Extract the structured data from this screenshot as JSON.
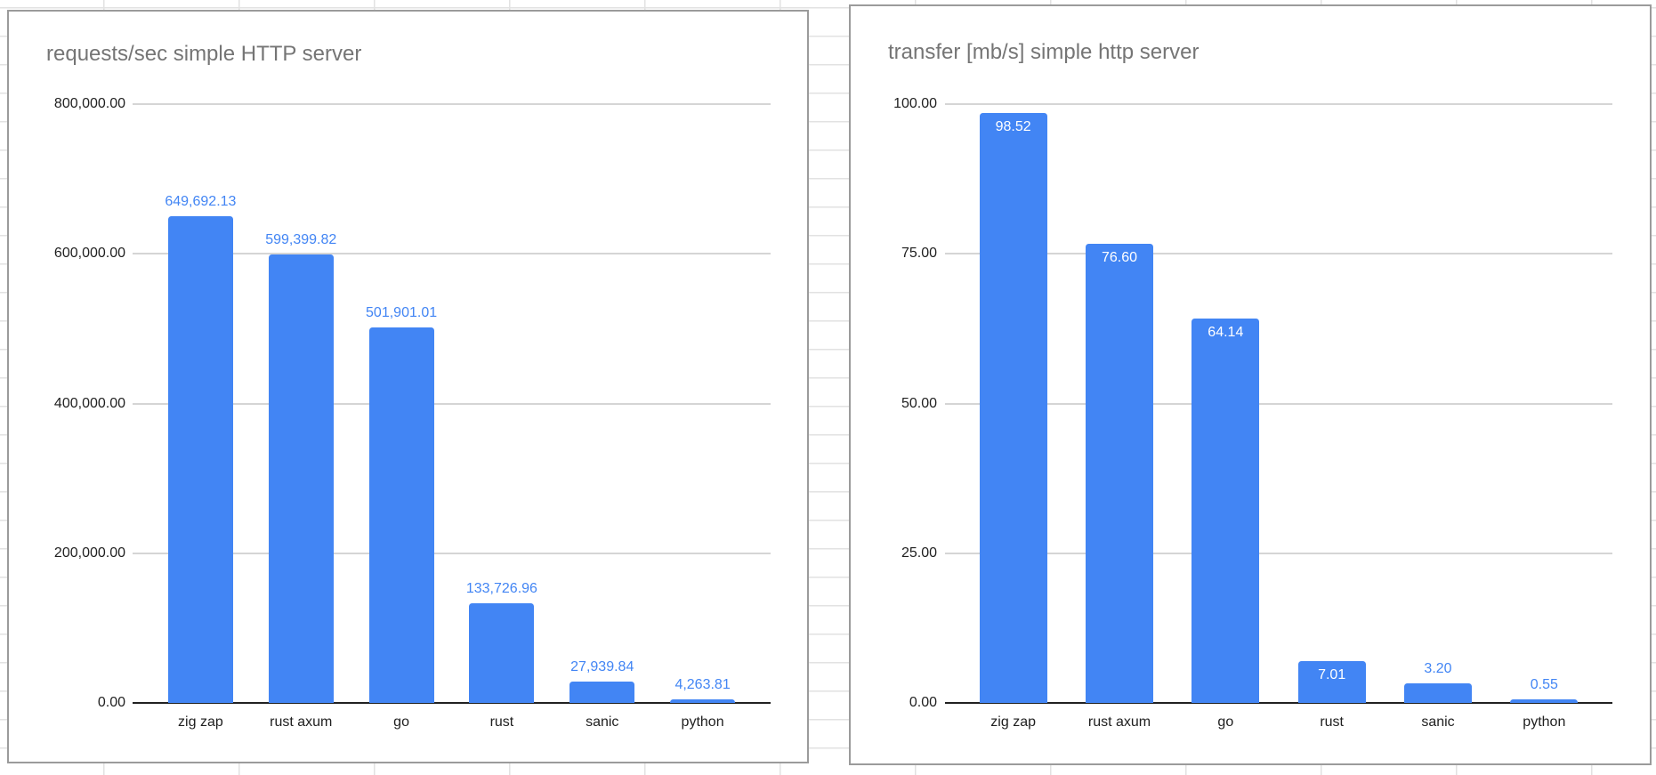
{
  "app": {
    "surface": "spreadsheet-with-embedded-charts"
  },
  "chart_data": [
    {
      "type": "bar",
      "title": "requests/sec simple HTTP server",
      "categories": [
        "zig zap",
        "rust axum",
        "go",
        "rust",
        "sanic",
        "python"
      ],
      "values": [
        649692.13,
        599399.82,
        501901.01,
        133726.96,
        27939.84,
        4263.81
      ],
      "data_labels": [
        "649,692.13",
        "599,399.82",
        "501,901.01",
        "133,726.96",
        "27,939.84",
        "4,263.81"
      ],
      "data_label_position": [
        "above",
        "above",
        "above",
        "above",
        "above",
        "above"
      ],
      "yticks": [
        {
          "value": 800000,
          "label": "800,000.00"
        },
        {
          "value": 600000,
          "label": "600,000.00"
        },
        {
          "value": 400000,
          "label": "400,000.00"
        },
        {
          "value": 200000,
          "label": "200,000.00"
        },
        {
          "value": 0,
          "label": "0.00"
        }
      ],
      "ylim": [
        0,
        800000
      ],
      "xlabel": "",
      "ylabel": "",
      "grid": true,
      "legend_position": "none",
      "colors": {
        "bar": "#4285f4",
        "data_label_outside": "#4285f4",
        "data_label_inside": "#ffffff",
        "gridline": "#d5d5d5",
        "axis_line": "#212121"
      }
    },
    {
      "type": "bar",
      "title": "transfer [mb/s] simple http server",
      "categories": [
        "zig zap",
        "rust axum",
        "go",
        "rust",
        "sanic",
        "python"
      ],
      "values": [
        98.52,
        76.6,
        64.14,
        7.01,
        3.2,
        0.55
      ],
      "data_labels": [
        "98.52",
        "76.60",
        "64.14",
        "7.01",
        "3.20",
        "0.55"
      ],
      "data_label_position": [
        "inside",
        "inside",
        "inside",
        "inside",
        "above",
        "above"
      ],
      "yticks": [
        {
          "value": 100,
          "label": "100.00"
        },
        {
          "value": 75,
          "label": "75.00"
        },
        {
          "value": 50,
          "label": "50.00"
        },
        {
          "value": 25,
          "label": "25.00"
        },
        {
          "value": 0,
          "label": "0.00"
        }
      ],
      "ylim": [
        0,
        100
      ],
      "xlabel": "",
      "ylabel": "",
      "grid": true,
      "legend_position": "none",
      "colors": {
        "bar": "#4285f4",
        "data_label_outside": "#4285f4",
        "data_label_inside": "#ffffff",
        "gridline": "#d5d5d5",
        "axis_line": "#212121"
      }
    }
  ]
}
